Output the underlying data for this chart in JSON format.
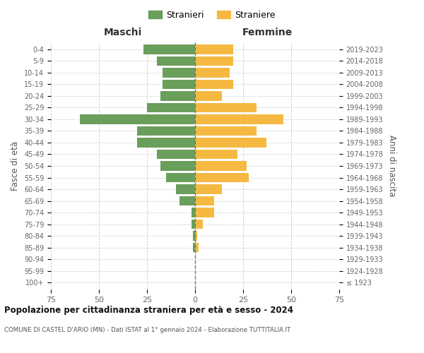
{
  "age_groups": [
    "100+",
    "95-99",
    "90-94",
    "85-89",
    "80-84",
    "75-79",
    "70-74",
    "65-69",
    "60-64",
    "55-59",
    "50-54",
    "45-49",
    "40-44",
    "35-39",
    "30-34",
    "25-29",
    "20-24",
    "15-19",
    "10-14",
    "5-9",
    "0-4"
  ],
  "birth_years": [
    "≤ 1923",
    "1924-1928",
    "1929-1933",
    "1934-1938",
    "1939-1943",
    "1944-1948",
    "1949-1953",
    "1954-1958",
    "1959-1963",
    "1964-1968",
    "1969-1973",
    "1974-1978",
    "1979-1983",
    "1984-1988",
    "1989-1993",
    "1994-1998",
    "1999-2003",
    "2004-2008",
    "2009-2013",
    "2014-2018",
    "2019-2023"
  ],
  "males": [
    0,
    0,
    0,
    1,
    1,
    2,
    2,
    8,
    10,
    15,
    18,
    20,
    30,
    30,
    60,
    25,
    18,
    17,
    17,
    20,
    27
  ],
  "females": [
    0,
    0,
    0,
    2,
    1,
    4,
    10,
    10,
    14,
    28,
    27,
    22,
    37,
    32,
    46,
    32,
    14,
    20,
    18,
    20,
    20
  ],
  "male_color": "#6a9e5b",
  "female_color": "#f5b942",
  "male_label": "Stranieri",
  "female_label": "Straniere",
  "left_header": "Maschi",
  "right_header": "Femmine",
  "ylabel": "Fasce di età",
  "right_ylabel": "Anni di nascita",
  "title": "Popolazione per cittadinanza straniera per età e sesso - 2024",
  "subtitle": "COMUNE DI CASTEL D'ARIO (MN) - Dati ISTAT al 1° gennaio 2024 - Elaborazione TUTTITALIA.IT",
  "xlim": 75,
  "bar_height": 0.8,
  "grid_color": "#cccccc",
  "background_color": "#ffffff",
  "center_line_color": "#7a7a55"
}
